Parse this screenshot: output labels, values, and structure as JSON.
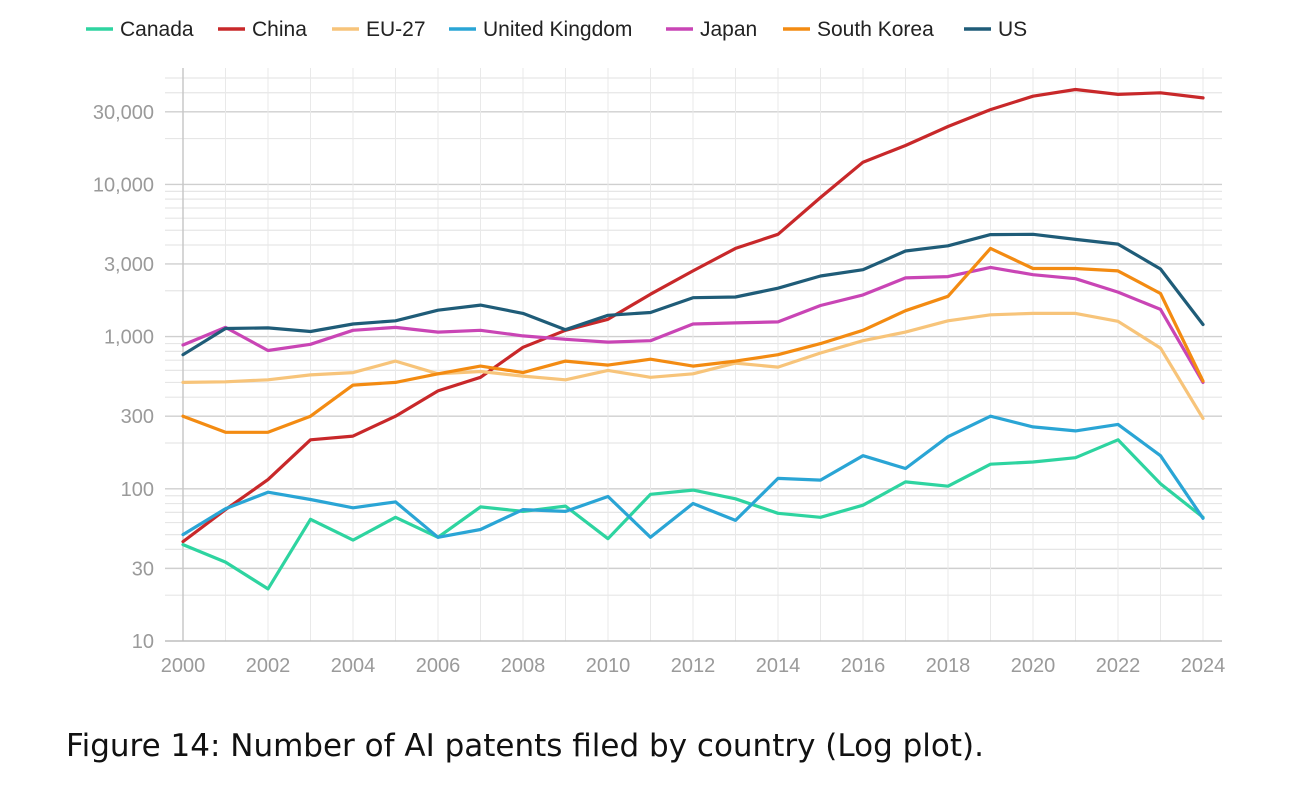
{
  "figure": {
    "caption": "Figure 14: Number of AI patents filed by country (Log plot)."
  },
  "chart_data": {
    "type": "line",
    "title": "",
    "xlabel": "",
    "ylabel": "",
    "yscale": "log",
    "ylim": [
      10,
      50000
    ],
    "xlim": [
      2000,
      2024
    ],
    "grid": true,
    "legend_position": "top",
    "x_tick_labels": [
      "2000",
      "2002",
      "2004",
      "2006",
      "2008",
      "2010",
      "2012",
      "2014",
      "2016",
      "2018",
      "2020",
      "2022",
      "2024"
    ],
    "y_ticks": [
      {
        "value": 10,
        "label": "10"
      },
      {
        "value": 30,
        "label": "30"
      },
      {
        "value": 100,
        "label": "100"
      },
      {
        "value": 300,
        "label": "300"
      },
      {
        "value": 1000,
        "label": "1,000"
      },
      {
        "value": 3000,
        "label": "3,000"
      },
      {
        "value": 10000,
        "label": "10,000"
      },
      {
        "value": 30000,
        "label": "30,000"
      }
    ],
    "x": [
      2000,
      2001,
      2002,
      2003,
      2004,
      2005,
      2006,
      2007,
      2008,
      2009,
      2010,
      2011,
      2012,
      2013,
      2014,
      2015,
      2016,
      2017,
      2018,
      2019,
      2020,
      2021,
      2022,
      2023,
      2024
    ],
    "series": [
      {
        "name": "Canada",
        "color": "#2ed4a0",
        "values": [
          43,
          33,
          22,
          63,
          46,
          65,
          48,
          76,
          71,
          77,
          47,
          92,
          98,
          86,
          69,
          65,
          78,
          111,
          104,
          145,
          150,
          160,
          210,
          108,
          65
        ]
      },
      {
        "name": "China",
        "color": "#c8282a",
        "values": [
          45,
          73,
          115,
          210,
          222,
          300,
          440,
          540,
          850,
          1100,
          1300,
          1900,
          2700,
          3800,
          4700,
          8200,
          14000,
          18000,
          24000,
          31000,
          38000,
          42000,
          39000,
          40000,
          37000
        ]
      },
      {
        "name": "EU-27",
        "color": "#f7c47a",
        "values": [
          500,
          505,
          520,
          560,
          580,
          690,
          570,
          590,
          550,
          520,
          600,
          540,
          570,
          670,
          630,
          780,
          940,
          1070,
          1270,
          1390,
          1420,
          1420,
          1260,
          840,
          290
        ]
      },
      {
        "name": "United Kingdom",
        "color": "#2aa5d5",
        "values": [
          50,
          74,
          95,
          85,
          75,
          82,
          48,
          54,
          73,
          71,
          89,
          48,
          80,
          62,
          117,
          114,
          165,
          136,
          220,
          300,
          255,
          240,
          265,
          165,
          64
        ]
      },
      {
        "name": "Japan",
        "color": "#c945b5",
        "values": [
          880,
          1150,
          810,
          890,
          1100,
          1150,
          1070,
          1100,
          1010,
          960,
          920,
          940,
          1210,
          1230,
          1250,
          1600,
          1880,
          2430,
          2480,
          2850,
          2550,
          2400,
          1960,
          1510,
          500
        ]
      },
      {
        "name": "South Korea",
        "color": "#f38b12",
        "values": [
          300,
          235,
          235,
          300,
          480,
          500,
          570,
          640,
          580,
          690,
          650,
          710,
          640,
          690,
          760,
          900,
          1100,
          1480,
          1840,
          3800,
          2800,
          2800,
          2700,
          1920,
          510
        ]
      },
      {
        "name": "US",
        "color": "#1f5c78",
        "values": [
          760,
          1130,
          1140,
          1080,
          1210,
          1270,
          1490,
          1610,
          1420,
          1110,
          1380,
          1440,
          1800,
          1820,
          2080,
          2500,
          2750,
          3650,
          3950,
          4680,
          4700,
          4350,
          4050,
          2780,
          1200
        ]
      }
    ]
  }
}
